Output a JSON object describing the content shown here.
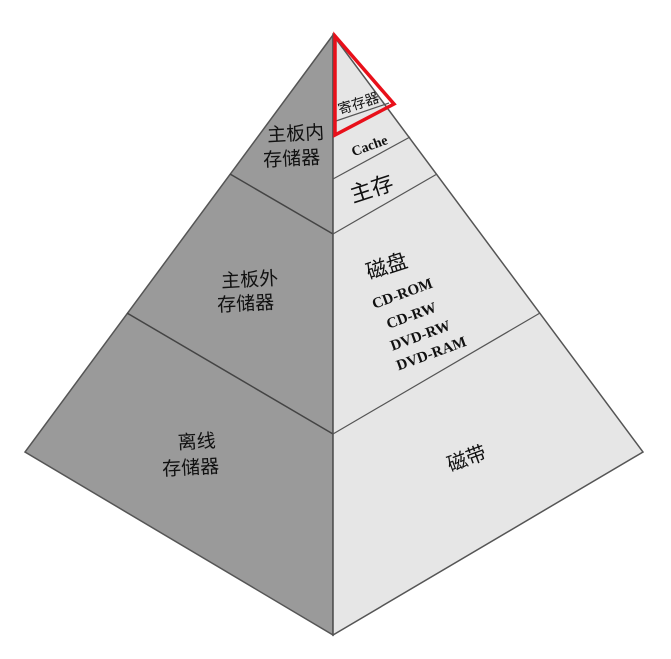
{
  "colors": {
    "left_face": "#9a9a9a",
    "right_face": "#e6e6e6",
    "edge": "#555555",
    "highlight": "#e8101a"
  },
  "left_face": {
    "tier1": {
      "line1": "主板内",
      "line2": "存储器"
    },
    "tier2": {
      "line1": "主板外",
      "line2": "存储器"
    },
    "tier3": {
      "line1": "离线",
      "line2": "存储器"
    }
  },
  "right_face": {
    "register": "寄存器",
    "cache": "Cache",
    "main_memory": "主存",
    "disk": {
      "title": "磁盘",
      "items": [
        "CD-ROM",
        "CD-RW",
        "DVD-RW",
        "DVD-RAM"
      ]
    },
    "tape": "磁带"
  }
}
